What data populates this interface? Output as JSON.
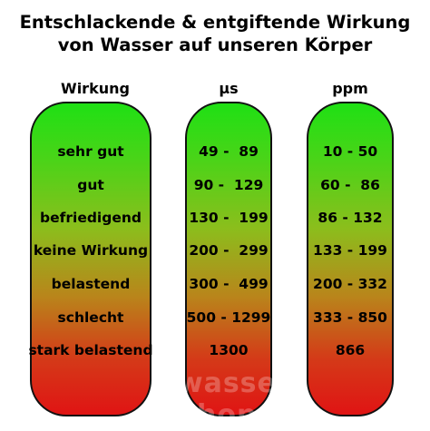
{
  "title_line1": "Entschlackende & entgiftende Wirkung",
  "title_line2": "von Wasser auf unseren Körper",
  "headers": {
    "wirkung": "Wirkung",
    "us": "µs",
    "ppm": "ppm"
  },
  "rows": [
    {
      "wirkung": "sehr gut",
      "us": "49 -  89",
      "ppm": "10 - 50"
    },
    {
      "wirkung": "gut",
      "us": "90 -  129",
      "ppm": "60 -  86"
    },
    {
      "wirkung": "befriedigend",
      "us": "130 -  199",
      "ppm": "86 - 132"
    },
    {
      "wirkung": "keine Wirkung",
      "us": "200 -  299",
      "ppm": "133 - 199"
    },
    {
      "wirkung": "belastend",
      "us": "300 -  499",
      "ppm": "200 - 332"
    },
    {
      "wirkung": "schlecht",
      "us": "500 - 1299",
      "ppm": "333 - 850"
    },
    {
      "wirkung": "stark belastend",
      "us": "1300",
      "ppm": "866"
    }
  ],
  "watermark": "wasser-shop.tv",
  "colors": {
    "gradient_top": "#1fe014",
    "gradient_bottom": "#e01414",
    "outline": "#111111"
  }
}
